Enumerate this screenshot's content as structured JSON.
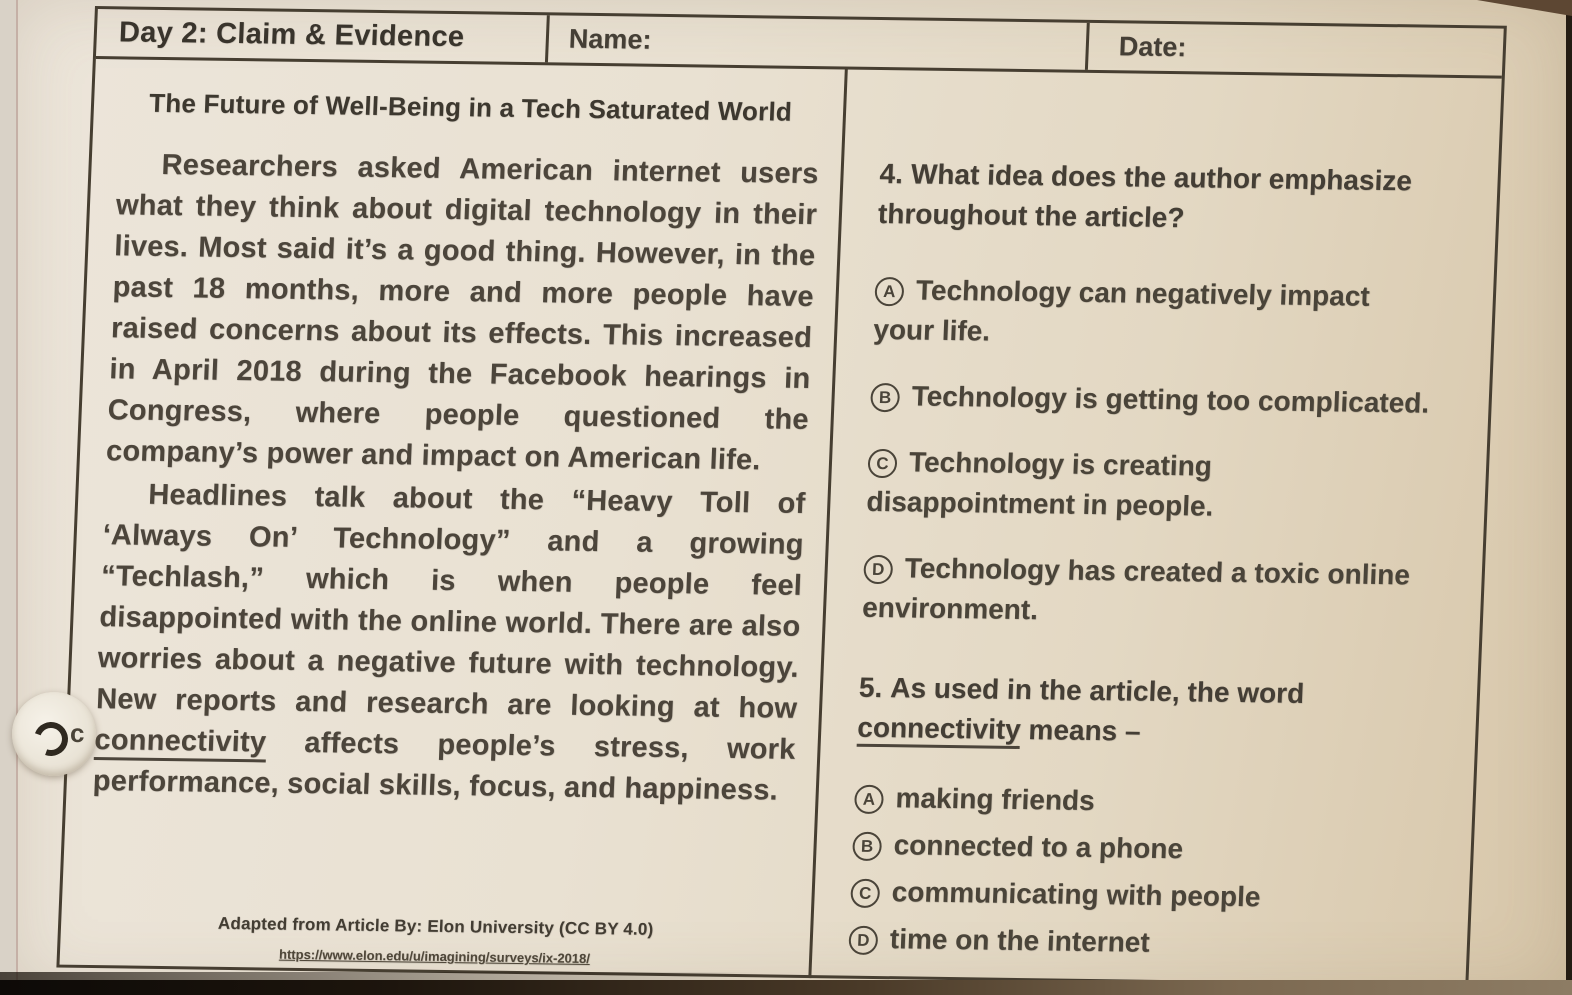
{
  "header": {
    "day_title": "Day 2: Claim & Evidence",
    "name_label": "Name:",
    "date_label": "Date:"
  },
  "passage": {
    "title": "The Future of Well-Being in a Tech Saturated World",
    "paragraph1": "Researchers asked American internet users what they think about digital technology in their lives. Most said it’s a good thing. However, in the past 18 months, more and more people have raised concerns about its effects. This increased in April 2018 during the Facebook hearings in Congress, where people questioned the company’s power and impact on American life.",
    "paragraph2_pre": "Headlines talk about the “Heavy Toll of ‘Always On’ Technology” and a growing “Techlash,” which is when people feel disappointed with the online world. There are also worries about a negative future with technology. New reports and research are looking at how ",
    "paragraph2_underlined": "connectivity",
    "paragraph2_post": " affects people’s stress, work performance, social skills, focus, and happiness.",
    "citation": "Adapted from Article By: Elon University (CC BY 4.0)",
    "citation_url": "https://www.elon.edu/u/imagining/surveys/ix-2018/"
  },
  "questions": [
    {
      "number": "4.",
      "text": "What idea does the author emphasize throughout the article?",
      "options": [
        {
          "letter": "A",
          "text": "Technology can negatively impact your life."
        },
        {
          "letter": "B",
          "text": "Technology is getting too complicated."
        },
        {
          "letter": "C",
          "text": "Technology is creating disappointment in people."
        },
        {
          "letter": "D",
          "text": "Technology has created a toxic online environment."
        }
      ]
    },
    {
      "number": "5.",
      "text_pre": "As used in the article, the word ",
      "text_underlined": "connectivity",
      "text_post": " means –",
      "options": [
        {
          "letter": "A",
          "text": "making friends"
        },
        {
          "letter": "B",
          "text": "connected to a phone"
        },
        {
          "letter": "C",
          "text": "communicating with people"
        },
        {
          "letter": "D",
          "text": "time on the internet"
        }
      ]
    }
  ],
  "artifacts": {
    "fastener_mark": "c"
  },
  "colors": {
    "paper": "#e9e1d2",
    "ink": "#463e31"
  }
}
